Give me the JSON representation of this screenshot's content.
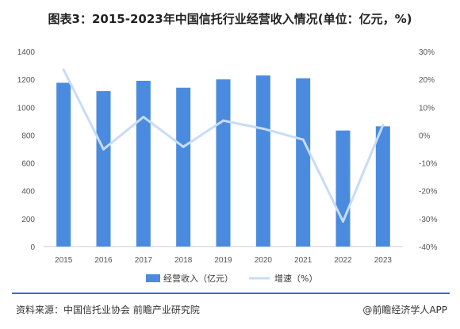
{
  "title": "图表3：2015-2023年中国信托行业经营收入情况(单位：亿元，%)",
  "source": "资料来源：中国信托业协会 前瞻产业研究院",
  "brand": "@前瞻经济学人APP",
  "colors": {
    "bar": "#4a8be0",
    "line": "#c7dcf5",
    "divider": "#2b6fd1"
  },
  "chart_data": {
    "type": "bar",
    "categories": [
      "2015",
      "2016",
      "2017",
      "2018",
      "2019",
      "2020",
      "2021",
      "2022",
      "2023"
    ],
    "series": [
      {
        "name": "经营收入（亿元）",
        "type": "bar",
        "axis": "left",
        "values": [
          1176,
          1116,
          1190,
          1140,
          1200,
          1228,
          1208,
          833,
          863
        ]
      },
      {
        "name": "增速（%）",
        "type": "line",
        "axis": "right",
        "values": [
          23.5,
          -5.1,
          6.5,
          -4.2,
          5.2,
          2.3,
          -1.6,
          -31.0,
          3.6
        ]
      }
    ],
    "ylim_left": [
      0,
      1400
    ],
    "yticks_left": [
      0,
      200,
      400,
      600,
      800,
      1000,
      1200,
      1400
    ],
    "ylim_right": [
      -40,
      30
    ],
    "yticks_right": [
      "-40%",
      "-30%",
      "-20%",
      "-10%",
      "0%",
      "10%",
      "20%",
      "30%"
    ],
    "grid": false,
    "legend": "bottom-center"
  }
}
